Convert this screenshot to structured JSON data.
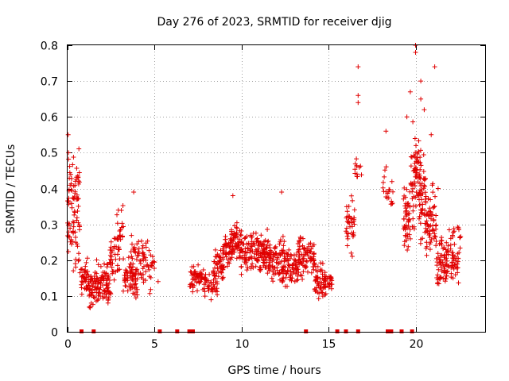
{
  "chart_data": {
    "type": "scatter",
    "title": "Day 276 of 2023, SRMTID for receiver djig",
    "xlabel": "GPS time / hours",
    "ylabel": "SRMTID / TECUs",
    "xlim": [
      0,
      24
    ],
    "ylim": [
      0,
      0.8
    ],
    "xticks": [
      0,
      5,
      10,
      15,
      20
    ],
    "xtick_labels": [
      "0",
      "5",
      "10",
      "15",
      "20"
    ],
    "yticks": [
      0,
      0.1,
      0.2,
      0.3,
      0.4,
      0.5,
      0.6,
      0.7,
      0.8
    ],
    "ytick_labels": [
      "0",
      "0.1",
      "0.2",
      "0.3",
      "0.4",
      "0.5",
      "0.6",
      "0.7",
      "0.8"
    ],
    "grid": true,
    "marker": "plus",
    "color": "#e00000",
    "series": [
      {
        "name": "SRMTID",
        "clusters": [
          {
            "x": [
              0.0,
              0.7
            ],
            "y": [
              0.12,
              0.55
            ],
            "n": 90
          },
          {
            "x": [
              0.7,
              1.2
            ],
            "y": [
              0.08,
              0.22
            ],
            "n": 40
          },
          {
            "x": [
              1.2,
              2.5
            ],
            "y": [
              0.04,
              0.22
            ],
            "n": 120
          },
          {
            "x": [
              2.4,
              3.0
            ],
            "y": [
              0.13,
              0.3
            ],
            "n": 40
          },
          {
            "x": [
              2.8,
              3.2
            ],
            "y": [
              0.2,
              0.4
            ],
            "n": 20
          },
          {
            "x": [
              3.2,
              4.0
            ],
            "y": [
              0.07,
              0.22
            ],
            "n": 60
          },
          {
            "x": [
              3.6,
              4.8
            ],
            "y": [
              0.08,
              0.3
            ],
            "n": 70
          },
          {
            "x": [
              4.8,
              5.0
            ],
            "y": [
              0.15,
              0.22
            ],
            "n": 8
          },
          {
            "x": [
              7.0,
              7.8
            ],
            "y": [
              0.1,
              0.2
            ],
            "n": 50
          },
          {
            "x": [
              7.8,
              8.6
            ],
            "y": [
              0.08,
              0.2
            ],
            "n": 50
          },
          {
            "x": [
              8.4,
              9.0
            ],
            "y": [
              0.12,
              0.26
            ],
            "n": 40
          },
          {
            "x": [
              8.9,
              9.5
            ],
            "y": [
              0.15,
              0.3
            ],
            "n": 50
          },
          {
            "x": [
              9.4,
              10.0
            ],
            "y": [
              0.18,
              0.32
            ],
            "n": 50
          },
          {
            "x": [
              9.9,
              11.5
            ],
            "y": [
              0.15,
              0.3
            ],
            "n": 140
          },
          {
            "x": [
              11.5,
              12.5
            ],
            "y": [
              0.12,
              0.28
            ],
            "n": 80
          },
          {
            "x": [
              12.3,
              13.3
            ],
            "y": [
              0.1,
              0.26
            ],
            "n": 80
          },
          {
            "x": [
              13.2,
              14.2
            ],
            "y": [
              0.12,
              0.3
            ],
            "n": 80
          },
          {
            "x": [
              14.2,
              14.8
            ],
            "y": [
              0.06,
              0.22
            ],
            "n": 50
          },
          {
            "x": [
              14.7,
              15.2
            ],
            "y": [
              0.1,
              0.18
            ],
            "n": 30
          },
          {
            "x": [
              16.0,
              16.5
            ],
            "y": [
              0.2,
              0.4
            ],
            "n": 40
          },
          {
            "x": [
              16.5,
              16.9
            ],
            "y": [
              0.4,
              0.5
            ],
            "n": 12
          },
          {
            "x": [
              18.1,
              18.7
            ],
            "y": [
              0.3,
              0.5
            ],
            "n": 20
          },
          {
            "x": [
              19.3,
              19.7
            ],
            "y": [
              0.2,
              0.45
            ],
            "n": 50
          },
          {
            "x": [
              19.7,
              20.2
            ],
            "y": [
              0.25,
              0.6
            ],
            "n": 60
          },
          {
            "x": [
              20.2,
              20.6
            ],
            "y": [
              0.2,
              0.55
            ],
            "n": 60
          },
          {
            "x": [
              20.6,
              21.2
            ],
            "y": [
              0.15,
              0.45
            ],
            "n": 60
          },
          {
            "x": [
              21.2,
              22.0
            ],
            "y": [
              0.1,
              0.3
            ],
            "n": 70
          },
          {
            "x": [
              22.0,
              22.6
            ],
            "y": [
              0.1,
              0.35
            ],
            "n": 50
          }
        ],
        "outliers": [
          {
            "x": 0.03,
            "y": 0.55
          },
          {
            "x": 0.05,
            "y": 0.5
          },
          {
            "x": 0.5,
            "y": 0.37
          },
          {
            "x": 3.8,
            "y": 0.39
          },
          {
            "x": 5.2,
            "y": 0.14
          },
          {
            "x": 9.5,
            "y": 0.38
          },
          {
            "x": 12.3,
            "y": 0.39
          },
          {
            "x": 16.7,
            "y": 0.74
          },
          {
            "x": 16.7,
            "y": 0.66
          },
          {
            "x": 16.7,
            "y": 0.64
          },
          {
            "x": 18.3,
            "y": 0.56
          },
          {
            "x": 19.5,
            "y": 0.6
          },
          {
            "x": 19.7,
            "y": 0.67
          },
          {
            "x": 20.0,
            "y": 0.8
          },
          {
            "x": 20.0,
            "y": 0.78
          },
          {
            "x": 20.3,
            "y": 0.7
          },
          {
            "x": 20.3,
            "y": 0.65
          },
          {
            "x": 20.5,
            "y": 0.62
          },
          {
            "x": 20.9,
            "y": 0.55
          },
          {
            "x": 21.1,
            "y": 0.74
          },
          {
            "x": 21.3,
            "y": 0.4
          }
        ],
        "zero_points_x": [
          0.8,
          1.5,
          5.3,
          6.3,
          7.0,
          7.2,
          13.7,
          15.5,
          16.0,
          16.7,
          18.4,
          18.6,
          19.2,
          19.8
        ]
      }
    ]
  }
}
